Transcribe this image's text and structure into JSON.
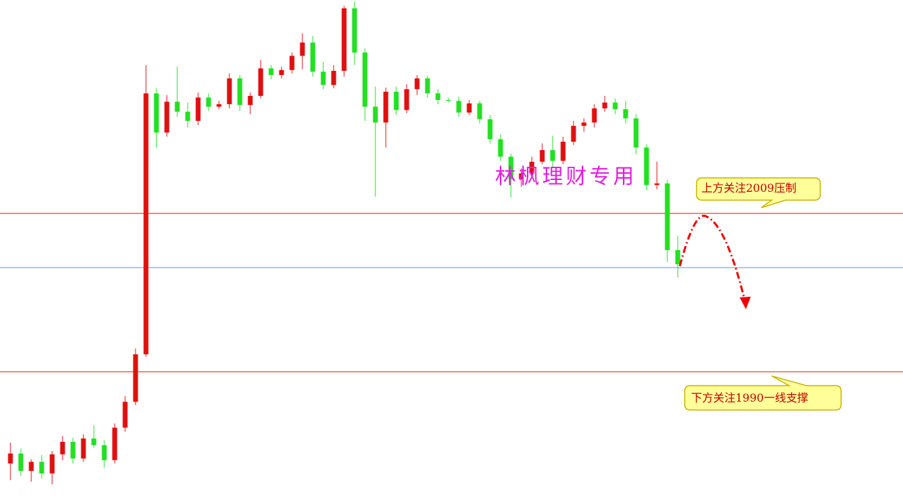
{
  "chart_data": {
    "type": "candlestick",
    "ylim": [
      1974.5,
      2034.6
    ],
    "up_color": "#e01010",
    "down_color": "#22e022",
    "watermark": "林枫理财专用",
    "hlines": [
      {
        "value": 2009,
        "color": "#e01010"
      },
      {
        "value": 2002.5,
        "color": "#6a8fc7"
      },
      {
        "value": 1990,
        "color": "#e01010"
      }
    ],
    "annotations": [
      "上方关注2009压制",
      "下方关注1990一线支撑"
    ],
    "candles": [
      [
        1979,
        1981.5,
        1977,
        1980.2
      ],
      [
        1980.2,
        1980.8,
        1977.5,
        1978.1
      ],
      [
        1978.1,
        1979.5,
        1976.8,
        1979.2
      ],
      [
        1979.2,
        1980,
        1977.2,
        1977.8
      ],
      [
        1977.8,
        1980.5,
        1976.5,
        1980.1
      ],
      [
        1980.1,
        1982.3,
        1979.4,
        1981.6
      ],
      [
        1981.6,
        1982.1,
        1979,
        1979.6
      ],
      [
        1979.6,
        1982.5,
        1979.2,
        1982
      ],
      [
        1982,
        1983.6,
        1980.9,
        1981.2
      ],
      [
        1981.2,
        1981.8,
        1978.5,
        1979.4
      ],
      [
        1979.4,
        1983.8,
        1979,
        1983.3
      ],
      [
        1983.3,
        1987.1,
        1982.8,
        1986.4
      ],
      [
        1986.4,
        1992.8,
        1986,
        1992.1
      ],
      [
        1992.1,
        2026.8,
        1991.8,
        2023.4
      ],
      [
        2023.4,
        2024,
        2016.9,
        2018.7
      ],
      [
        2018.7,
        2023.2,
        2018.2,
        2022.4
      ],
      [
        2022.4,
        2026.6,
        2020.6,
        2021.2
      ],
      [
        2021.2,
        2022.3,
        2019.3,
        2020.1
      ],
      [
        2020.1,
        2023.5,
        2019.6,
        2022.9
      ],
      [
        2022.9,
        2023.4,
        2021.3,
        2021.8
      ],
      [
        2021.8,
        2022.5,
        2021.5,
        2022.1
      ],
      [
        2022.1,
        2025.8,
        2021.6,
        2025.2
      ],
      [
        2025.2,
        2025.6,
        2021.3,
        2022
      ],
      [
        2022,
        2023.5,
        2020.9,
        2023.1
      ],
      [
        2023.1,
        2027.4,
        2022.8,
        2026.4
      ],
      [
        2026.4,
        2026.8,
        2025.1,
        2025.6
      ],
      [
        2025.6,
        2026.6,
        2025.2,
        2026.2
      ],
      [
        2026.2,
        2028.3,
        2025.8,
        2027.9
      ],
      [
        2027.9,
        2030.6,
        2026.3,
        2029.5
      ],
      [
        2029.5,
        2030.3,
        2025.4,
        2026
      ],
      [
        2026,
        2027.2,
        2023.9,
        2024.4
      ],
      [
        2024.4,
        2026.8,
        2024,
        2026.1
      ],
      [
        2026.1,
        2033.9,
        2025.4,
        2033.6
      ],
      [
        2033.6,
        2034.4,
        2026.8,
        2028.3
      ],
      [
        2028.3,
        2028.8,
        2020.1,
        2021.8
      ],
      [
        2021.8,
        2024.2,
        2011,
        2019.9
      ],
      [
        2019.9,
        2024.1,
        2016.9,
        2023.6
      ],
      [
        2023.6,
        2024.2,
        2020.8,
        2021.4
      ],
      [
        2021.4,
        2024.5,
        2021,
        2023.9
      ],
      [
        2023.9,
        2025.6,
        2023.2,
        2025.2
      ],
      [
        2025.2,
        2025.5,
        2022.9,
        2023.4
      ],
      [
        2023.4,
        2023.9,
        2022.1,
        2022.6
      ],
      [
        2022.6,
        2022.9,
        2022.3,
        2022.5
      ],
      [
        2022.5,
        2023,
        2020.6,
        2021.1
      ],
      [
        2021.1,
        2022.6,
        2020.8,
        2022.2
      ],
      [
        2022.2,
        2022.5,
        2019.8,
        2020.3
      ],
      [
        2020.3,
        2020.8,
        2017.4,
        2017.9
      ],
      [
        2017.9,
        2018.5,
        2015.3,
        2015.8
      ],
      [
        2015.8,
        2016.2,
        2010.9,
        2013.1
      ],
      [
        2013.1,
        2014.4,
        2012.2,
        2013.8
      ],
      [
        2013.8,
        2015.8,
        2013.4,
        2015.2
      ],
      [
        2015.2,
        2017.4,
        2014.9,
        2016.6
      ],
      [
        2016.6,
        2018.3,
        2014.5,
        2015.3
      ],
      [
        2015.3,
        2018.2,
        2014.9,
        2017.6
      ],
      [
        2017.6,
        2020.1,
        2017.2,
        2019.5
      ],
      [
        2019.5,
        2020.4,
        2018.8,
        2019.9
      ],
      [
        2019.9,
        2022.1,
        2019.3,
        2021.6
      ],
      [
        2021.6,
        2023.1,
        2021.2,
        2022.3
      ],
      [
        2022.3,
        2022.8,
        2020.9,
        2021.5
      ],
      [
        2021.5,
        2022.5,
        2019.8,
        2020.4
      ],
      [
        2020.4,
        2020.9,
        2016.1,
        2016.9
      ],
      [
        2016.9,
        2017.3,
        2011.8,
        2012.4
      ],
      [
        2012.4,
        2015.2,
        2011.9,
        2012.6
      ],
      [
        2012.6,
        2013,
        2003.2,
        2004.6
      ],
      [
        2004.6,
        2006.3,
        2001.3,
        2002.9
      ]
    ]
  }
}
